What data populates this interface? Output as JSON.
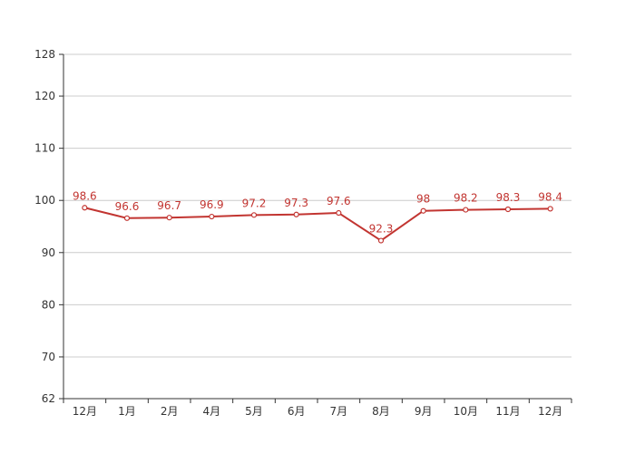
{
  "chart_data": {
    "type": "line",
    "categories": [
      "12月",
      "1月",
      "2月",
      "4月",
      "5月",
      "6月",
      "7月",
      "8月",
      "9月",
      "10月",
      "11月",
      "12月"
    ],
    "series": [
      {
        "values": [
          98.6,
          96.6,
          96.7,
          96.9,
          97.2,
          97.3,
          97.6,
          92.3,
          98,
          98.2,
          98.3,
          98.4
        ],
        "labels": [
          "98.6",
          "96.6",
          "96.7",
          "96.9",
          "97.2",
          "97.3",
          "97.6",
          "92.3",
          "98",
          "98.2",
          "98.3",
          "98.4"
        ],
        "color": "#c23531"
      }
    ],
    "yticks": [
      62,
      70,
      80,
      90,
      100,
      110,
      120,
      128
    ],
    "ylim": [
      62,
      128
    ],
    "title": "",
    "xlabel": "",
    "ylabel": "",
    "grid": true,
    "legend": "none"
  }
}
